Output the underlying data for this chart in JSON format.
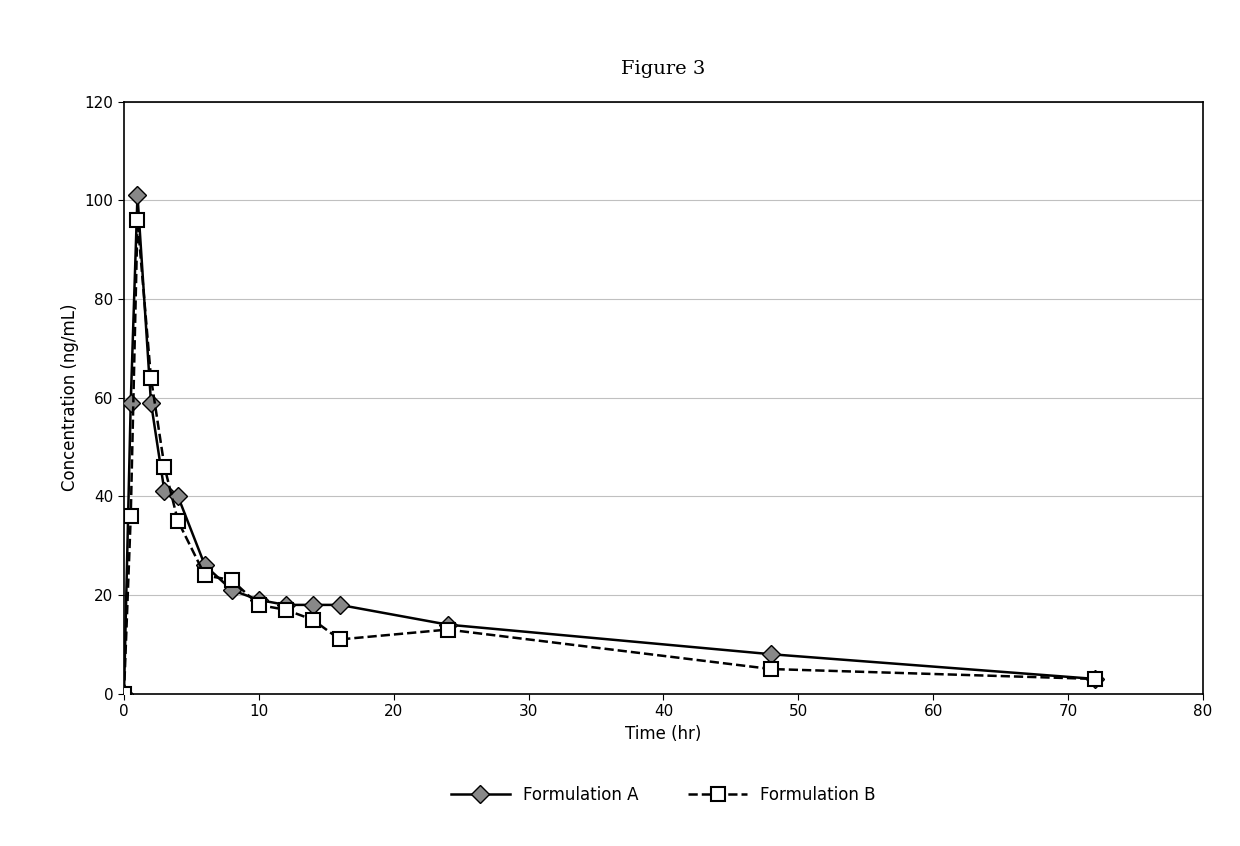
{
  "title": "Figure 3",
  "xlabel": "Time (hr)",
  "ylabel": "Concentration (ng/mL)",
  "xlim": [
    0,
    80
  ],
  "ylim": [
    0,
    120
  ],
  "xticks": [
    0,
    10,
    20,
    30,
    40,
    50,
    60,
    70,
    80
  ],
  "yticks": [
    0,
    20,
    40,
    60,
    80,
    100,
    120
  ],
  "formulation_A_x": [
    0,
    0.5,
    1,
    2,
    3,
    4,
    6,
    8,
    10,
    12,
    14,
    16,
    24,
    48,
    72
  ],
  "formulation_A_y": [
    0,
    59,
    101,
    59,
    41,
    40,
    26,
    21,
    19,
    18,
    18,
    18,
    14,
    8,
    3
  ],
  "formulation_B_x": [
    0,
    0.5,
    1,
    2,
    3,
    4,
    6,
    8,
    10,
    12,
    14,
    16,
    24,
    48,
    72
  ],
  "formulation_B_y": [
    0,
    36,
    96,
    64,
    46,
    35,
    24,
    23,
    18,
    17,
    15,
    11,
    13,
    5,
    3
  ],
  "line_color_A": "#000000",
  "line_color_B": "#000000",
  "background_color": "#ffffff",
  "grid_color": "#c0c0c0",
  "legend_A": "Formulation A",
  "legend_B": "Formulation B",
  "title_fontsize": 14,
  "axis_label_fontsize": 12,
  "tick_fontsize": 11,
  "legend_fontsize": 12
}
